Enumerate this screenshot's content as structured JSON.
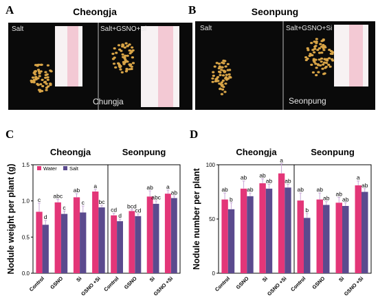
{
  "panels": {
    "A": {
      "letter": "A",
      "title": "Cheongja",
      "photo_labels": [
        "Salt",
        "Salt+GSNO+Si",
        "Chungja"
      ]
    },
    "B": {
      "letter": "B",
      "title": "Seonpung",
      "photo_labels": [
        "Salt",
        "Salt+GSNO+Si",
        "Seonpung"
      ]
    }
  },
  "colors": {
    "water": "#e33678",
    "salt": "#5b4a8e",
    "photo_bg": "#0a0a0a",
    "seed": "#d9a547",
    "ruler": "#f3c9d4"
  },
  "chart_data": [
    {
      "panel": "C",
      "type": "bar",
      "ylabel": "Nodule weight per plant (g)",
      "ylim": [
        0,
        1.5
      ],
      "yticks": [
        0.0,
        0.5,
        1.0,
        1.5
      ],
      "ytick_labels": [
        "0.0",
        "0.5",
        "1.0",
        "1.5"
      ],
      "legend": {
        "placement": "top-left",
        "entries": [
          "Water",
          "Salt"
        ]
      },
      "groups": [
        {
          "title": "Cheongja",
          "categories": [
            "Control",
            "GSNO",
            "Si",
            "GSNO +Si"
          ],
          "series": [
            {
              "name": "Water",
              "values": [
                0.85,
                0.98,
                1.05,
                1.13
              ],
              "errors": [
                0.12,
                0.04,
                0.05,
                0.03
              ],
              "letters": [
                "c",
                "abc",
                "ab",
                "a"
              ]
            },
            {
              "name": "Salt",
              "values": [
                0.67,
                0.82,
                0.84,
                0.91
              ],
              "errors": [
                0.06,
                0.04,
                0.09,
                0.03
              ],
              "letters": [
                "d",
                "c",
                "c",
                "bc"
              ]
            }
          ]
        },
        {
          "title": "Seonpung",
          "categories": [
            "Control",
            "GSNO",
            "Si",
            "GSNO +Si"
          ],
          "series": [
            {
              "name": "Water",
              "values": [
                0.8,
                0.86,
                1.06,
                1.1
              ],
              "errors": [
                0.03,
                0.02,
                0.08,
                0.05
              ],
              "letters": [
                "cd",
                "bcd",
                "ab",
                "a"
              ]
            },
            {
              "name": "Salt",
              "values": [
                0.72,
                0.79,
                0.96,
                1.04
              ],
              "errors": [
                0.03,
                0.03,
                0.04,
                0.03
              ],
              "letters": [
                "d",
                "cd",
                "abc",
                "ab"
              ]
            }
          ]
        }
      ]
    },
    {
      "panel": "D",
      "type": "bar",
      "ylabel": "Nodule number per plant",
      "ylim": [
        0,
        100
      ],
      "yticks": [
        0,
        50,
        100
      ],
      "ytick_labels": [
        "0",
        "50",
        "100"
      ],
      "groups": [
        {
          "title": "Cheongja",
          "categories": [
            "Control",
            "GSNO",
            "Si",
            "GSNO +Si"
          ],
          "series": [
            {
              "name": "Water",
              "values": [
                68,
                78,
                83,
                92
              ],
              "errors": [
                6,
                7,
                4,
                9
              ],
              "letters": [
                "ab",
                "ab",
                "ab",
                "a"
              ]
            },
            {
              "name": "Salt",
              "values": [
                59,
                71,
                78,
                79
              ],
              "errors": [
                6,
                3,
                4,
                3
              ],
              "letters": [
                "b",
                "ab",
                "ab",
                "ab"
              ]
            }
          ]
        },
        {
          "title": "Seonpung",
          "categories": [
            "Control",
            "GSNO",
            "Si",
            "GSNO +Si"
          ],
          "series": [
            {
              "name": "Water",
              "values": [
                67,
                68,
                65,
                81
              ],
              "errors": [
                7,
                6,
                5,
                4
              ],
              "letters": [
                "ab",
                "ab",
                "ab",
                "a"
              ]
            },
            {
              "name": "Salt",
              "values": [
                51,
                63,
                62,
                75
              ],
              "errors": [
                4,
                3,
                3,
                3
              ],
              "letters": [
                "b",
                "ab",
                "ab",
                "ab"
              ]
            }
          ]
        }
      ]
    }
  ],
  "panel_letters": {
    "C": "C",
    "D": "D"
  }
}
